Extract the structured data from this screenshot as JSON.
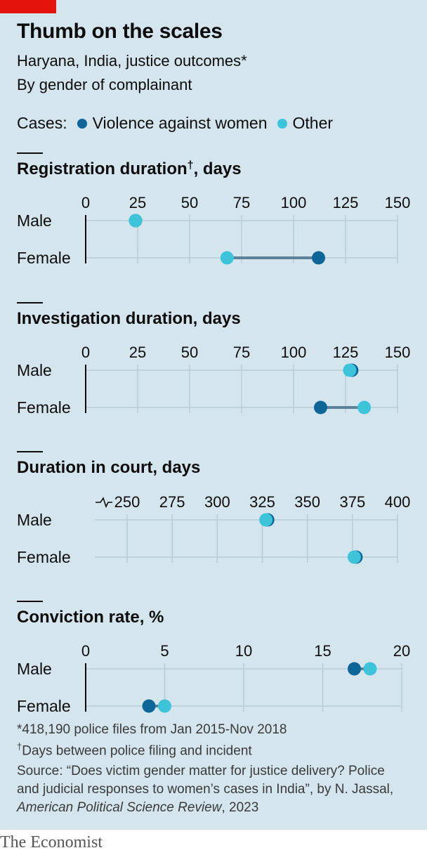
{
  "header": {
    "title": "Thumb on the scales",
    "subtitle": "Haryana, India, justice outcomes*",
    "subtitle2": "By gender of complainant"
  },
  "legend": {
    "label": "Cases:",
    "items": [
      {
        "name": "Violence against women",
        "color": "#0e6597"
      },
      {
        "name": "Other",
        "color": "#3ec4da"
      }
    ]
  },
  "colors": {
    "vaw": "#0e6597",
    "other": "#3ec4da",
    "connector": "#5c829b",
    "grid": "#b9cbd5",
    "axis": "#0d0d0d"
  },
  "chart_data": [
    {
      "type": "dot",
      "title": "Registration duration",
      "title_mark": "†",
      "title_suffix": ", days",
      "categories": [
        "Male",
        "Female"
      ],
      "ticks": [
        0,
        25,
        50,
        75,
        100,
        125,
        150
      ],
      "xlim": [
        0,
        150
      ],
      "axis_break": false,
      "series": [
        {
          "name": "Violence against women",
          "values": [
            24,
            112
          ]
        },
        {
          "name": "Other",
          "values": [
            24,
            68
          ]
        }
      ]
    },
    {
      "type": "dot",
      "title": "Investigation duration, days",
      "title_mark": "",
      "title_suffix": "",
      "categories": [
        "Male",
        "Female"
      ],
      "ticks": [
        0,
        25,
        50,
        75,
        100,
        125,
        150
      ],
      "xlim": [
        0,
        150
      ],
      "axis_break": false,
      "series": [
        {
          "name": "Violence against women",
          "values": [
            128,
            113
          ]
        },
        {
          "name": "Other",
          "values": [
            127,
            134
          ]
        }
      ]
    },
    {
      "type": "dot",
      "title": "Duration in court, days",
      "title_mark": "",
      "title_suffix": "",
      "categories": [
        "Male",
        "Female"
      ],
      "ticks": [
        250,
        275,
        300,
        325,
        350,
        375,
        400
      ],
      "xlim": [
        233,
        400
      ],
      "axis_break": true,
      "series": [
        {
          "name": "Violence against women",
          "values": [
            328,
            377
          ]
        },
        {
          "name": "Other",
          "values": [
            327,
            376
          ]
        }
      ]
    },
    {
      "type": "dot",
      "title": "Conviction rate, %",
      "title_mark": "",
      "title_suffix": "",
      "categories": [
        "Male",
        "Female"
      ],
      "ticks": [
        0,
        5,
        10,
        15,
        20
      ],
      "xlim": [
        0,
        20
      ],
      "axis_break": false,
      "series": [
        {
          "name": "Violence against women",
          "values": [
            17,
            4
          ]
        },
        {
          "name": "Other",
          "values": [
            18,
            5
          ]
        }
      ]
    }
  ],
  "footnotes": {
    "note1": "*418,190 police files from Jan 2015-Nov 2018",
    "note2_mark": "†",
    "note2": "Days between police filing and incident",
    "source1": "Source: “Does victim gender matter for justice delivery? Police",
    "source2": "and judicial responses to women’s cases in India”, by N. Jassal,",
    "source3_italic": "American Political Science Review",
    "source3_rest": ", 2023"
  },
  "brand": "The Economist"
}
